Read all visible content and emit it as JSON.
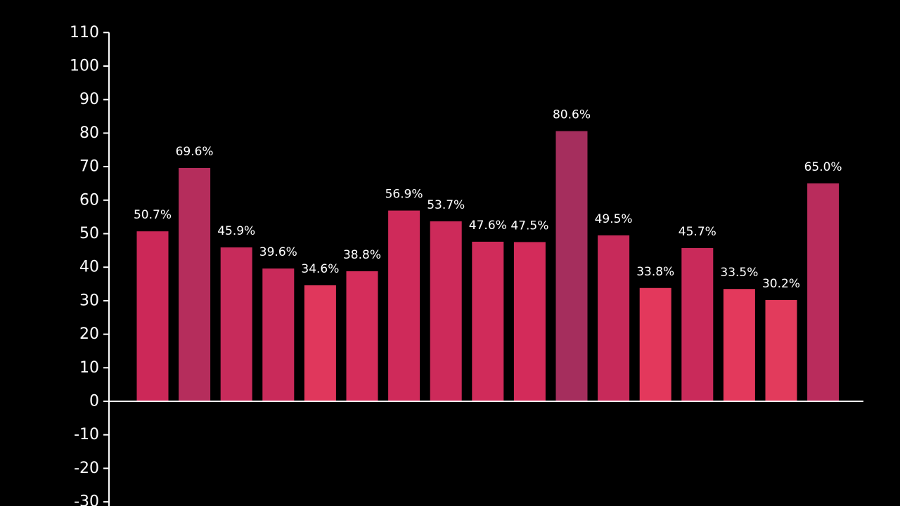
{
  "chart_data": {
    "type": "bar",
    "title": "",
    "xlabel": "",
    "ylabel": "",
    "ylim": [
      -30,
      110
    ],
    "yticks": [
      110,
      100,
      90,
      80,
      70,
      60,
      50,
      40,
      30,
      20,
      10,
      0,
      -10,
      -20,
      -30
    ],
    "grid": false,
    "legend": "none",
    "values": [
      50.7,
      69.6,
      45.9,
      39.6,
      34.6,
      38.8,
      56.9,
      53.7,
      47.6,
      47.5,
      80.6,
      49.5,
      33.8,
      45.7,
      33.5,
      30.2,
      65.0
    ],
    "data_labels": [
      "50.7%",
      "69.6%",
      "45.9%",
      "39.6%",
      "34.6%",
      "38.8%",
      "56.9%",
      "53.7%",
      "47.6%",
      "47.5%",
      "80.6%",
      "49.5%",
      "33.8%",
      "45.7%",
      "33.5%",
      "30.2%",
      "65.0%"
    ],
    "bar_colors": [
      "#cc2858",
      "#b52d5c",
      "#c72b5b",
      "#c92a5a",
      "#e0375c",
      "#d52d5b",
      "#cf2a5a",
      "#cd2a5a",
      "#d02b5a",
      "#d32b5a",
      "#a52e5d",
      "#c72a5a",
      "#e3385c",
      "#c92a5a",
      "#e3395c",
      "#e23b5c",
      "#b92c5c"
    ],
    "colors": {
      "background": "#000000",
      "axis": "#ffffff",
      "text": "#ffffff"
    }
  }
}
